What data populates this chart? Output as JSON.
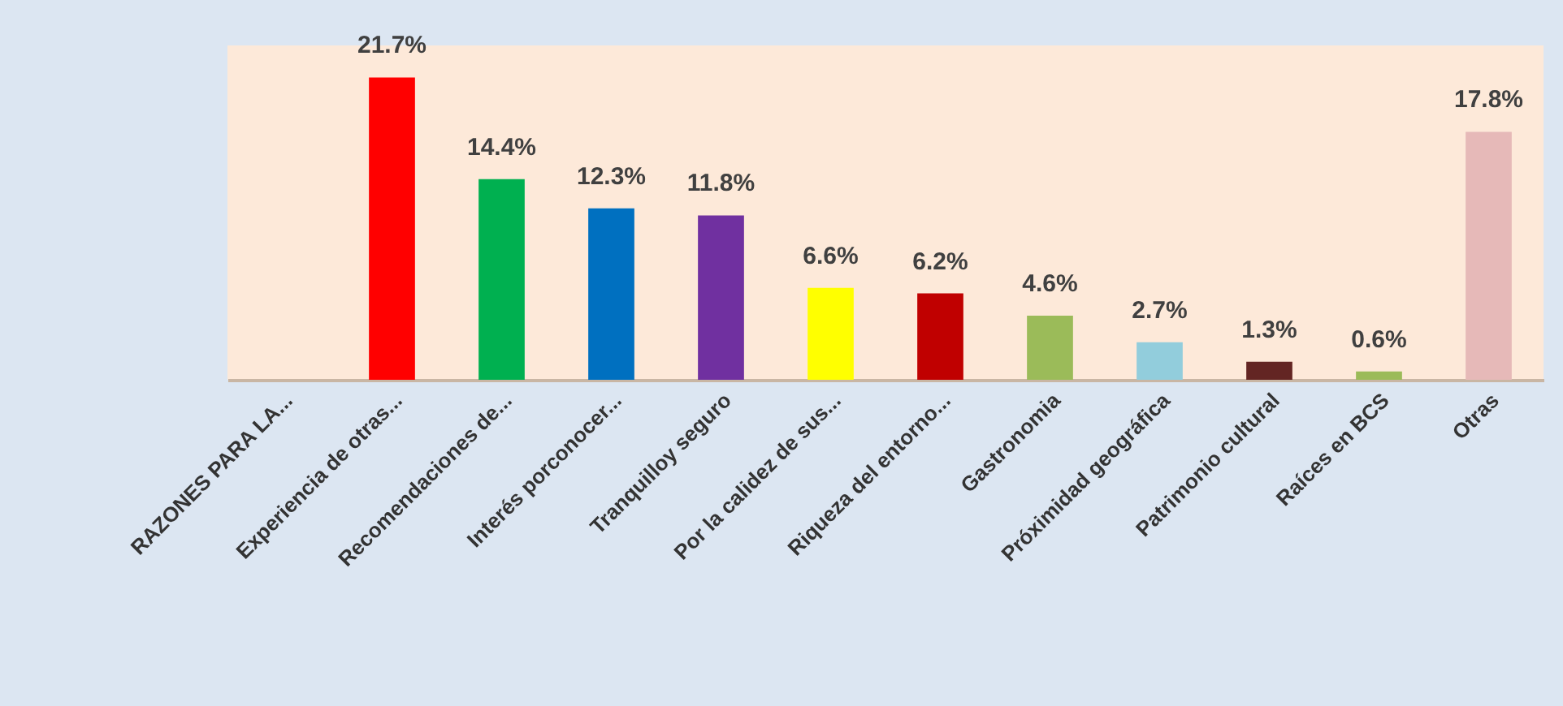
{
  "chart_data": {
    "type": "bar",
    "categories": [
      "RAZONES PARA LA...",
      "Experiencia de otras...",
      "Recomendaciones de...",
      "Interés porconocer...",
      "Tranquilloy seguro",
      "Por la  calidez de sus...",
      "Riqueza del entorno...",
      "Gastronomia",
      "Próximidad geográfica",
      "Patrimonio cultural",
      "Raíces en BCS",
      "Otras"
    ],
    "values": [
      null,
      21.7,
      14.4,
      12.3,
      11.8,
      6.6,
      6.2,
      4.6,
      2.7,
      1.3,
      0.6,
      17.8
    ],
    "value_labels": [
      null,
      "21.7%",
      "14.4%",
      "12.3%",
      "11.8%",
      "6.6%",
      "6.2%",
      "4.6%",
      "2.7%",
      "1.3%",
      "0.6%",
      "17.8%"
    ],
    "colors": [
      "#9bbb59",
      "#ff0000",
      "#00b050",
      "#0070c0",
      "#7030a0",
      "#ffff00",
      "#c00000",
      "#9bbb59",
      "#92cddc",
      "#632523",
      "#9bbb59",
      "#e6b9b8"
    ],
    "ylim": [
      0,
      24
    ],
    "tick_labels": "x"
  }
}
